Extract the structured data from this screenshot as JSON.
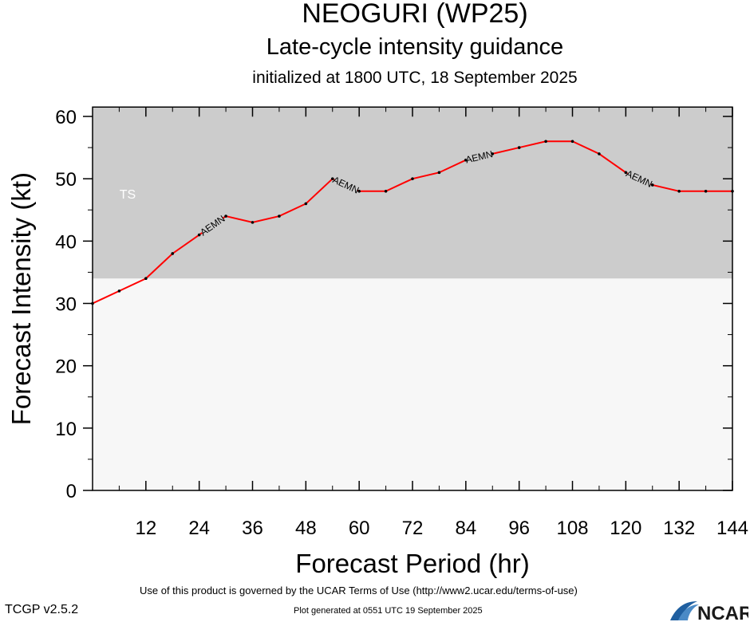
{
  "header": {
    "title": "NEOGURI (WP25)",
    "subtitle": "Late-cycle intensity guidance",
    "initialized": "initialized at 1800 UTC, 18 September 2025"
  },
  "footer": {
    "terms": "Use of this product is governed by the UCAR Terms of Use (http://www2.ucar.edu/terms-of-use)",
    "generated": "Plot generated at 0551 UTC   19 September 2025",
    "version": "TCGP v2.5.2",
    "logo_text": "NCAR"
  },
  "chart_data": {
    "type": "line",
    "title": "NEOGURI (WP25)",
    "xlabel": "Forecast Period (hr)",
    "ylabel": "Forecast Intensity (kt)",
    "xlim": [
      0,
      144
    ],
    "ylim": [
      0,
      60
    ],
    "xticks": [
      12,
      24,
      36,
      48,
      60,
      72,
      84,
      96,
      108,
      120,
      132,
      144
    ],
    "yticks": [
      0,
      10,
      20,
      30,
      40,
      50,
      60
    ],
    "band": {
      "label": "TS",
      "from": 34,
      "to": 61.5,
      "color": "#cccccc"
    },
    "below_band_color": "#f7f7f7",
    "series": [
      {
        "name": "AEMN",
        "color": "#ff0000",
        "label_at_hours": [
          24,
          54,
          84,
          120
        ],
        "x": [
          0,
          6,
          12,
          18,
          24,
          30,
          36,
          42,
          48,
          54,
          60,
          66,
          72,
          78,
          84,
          90,
          96,
          102,
          108,
          114,
          120,
          126,
          132,
          138,
          144
        ],
        "y": [
          30,
          32,
          34,
          38,
          41,
          44,
          43,
          44,
          46,
          50,
          48,
          48,
          50,
          51,
          53,
          54,
          55,
          56,
          56,
          54,
          51,
          49,
          48,
          48,
          48
        ]
      }
    ]
  }
}
